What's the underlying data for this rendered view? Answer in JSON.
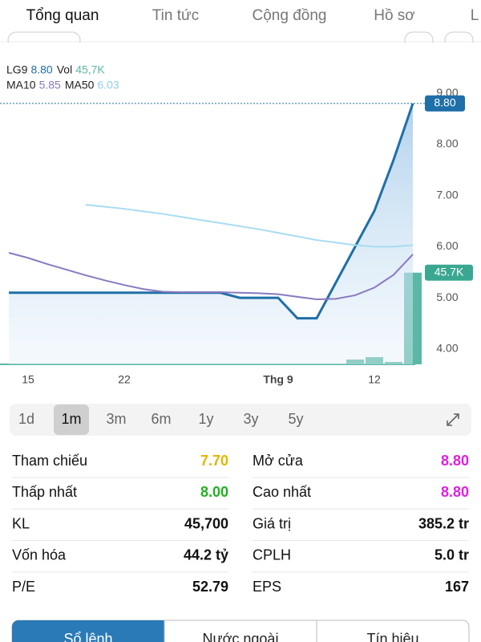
{
  "tabs": [
    "Tổng quan",
    "Tin tức",
    "Cộng đồng",
    "Hồ sơ",
    "L"
  ],
  "active_tab": 0,
  "chart": {
    "type": "line",
    "x": [
      -1,
      0,
      1,
      2,
      3,
      4,
      5,
      6,
      7,
      8,
      9,
      10,
      11,
      12,
      13,
      14,
      15,
      16,
      17,
      18,
      19,
      20
    ],
    "series": [
      {
        "name": "LG9",
        "legend_value": "8.80",
        "color": "#1f6fa8",
        "values": [
          5.1,
          5.1,
          5.1,
          5.1,
          5.1,
          5.1,
          5.1,
          5.1,
          5.1,
          5.1,
          5.1,
          5.1,
          5.0,
          5.0,
          5.0,
          4.6,
          4.6,
          5.3,
          6.0,
          6.7,
          7.7,
          8.8
        ]
      },
      {
        "name": "MA10",
        "legend_value": "5.85",
        "color": "#8a79c0",
        "values": [
          5.88,
          5.78,
          5.66,
          5.55,
          5.44,
          5.34,
          5.25,
          5.17,
          5.12,
          5.11,
          5.11,
          5.11,
          5.1,
          5.09,
          5.07,
          5.02,
          4.97,
          4.98,
          5.05,
          5.2,
          5.45,
          5.85
        ]
      },
      {
        "name": "MA50",
        "legend_value": "6.03",
        "color": "#a8dcf2",
        "values": [
          null,
          null,
          null,
          null,
          6.82,
          6.78,
          6.74,
          6.69,
          6.64,
          6.58,
          6.52,
          6.46,
          6.4,
          6.34,
          6.27,
          6.2,
          6.13,
          6.08,
          6.03,
          6.0,
          6.0,
          6.03
        ]
      }
    ],
    "volume": {
      "name": "Vol",
      "legend_value": "45,7K",
      "color": "#5bb8a6",
      "x": [
        17,
        18,
        19,
        20
      ],
      "values": [
        2400,
        3600,
        1200,
        45700
      ],
      "vlim": [
        0,
        60000
      ]
    },
    "xlim": [
      -1.46,
      20.125
    ],
    "ylim": [
      3.7,
      9.88
    ],
    "yticks": [
      {
        "value": 4,
        "label": "4.00"
      },
      {
        "value": 5,
        "label": "5.00"
      },
      {
        "value": 6,
        "label": "6.00"
      },
      {
        "value": 7,
        "label": "7.00"
      },
      {
        "value": 8,
        "label": "8.00"
      },
      {
        "value": 9,
        "label": "9.00"
      }
    ],
    "xticks": [
      {
        "value": 0,
        "label": "15"
      },
      {
        "value": 5,
        "label": "22"
      },
      {
        "value": 13,
        "label": "Thg 9"
      },
      {
        "value": 18,
        "label": "12"
      }
    ],
    "price_tag": {
      "value": 8.8,
      "label": "8.80"
    },
    "volume_tag": {
      "value": 45700,
      "label": "45.7K"
    }
  },
  "ranges": [
    "1d",
    "1m",
    "3m",
    "6m",
    "1y",
    "3y",
    "5y"
  ],
  "active_range": 1,
  "stats": [
    [
      {
        "label": "Tham chiếu",
        "value": "7.70",
        "color": "#e3b600"
      },
      {
        "label": "Mở cửa",
        "value": "8.80",
        "color": "#e01ee0"
      }
    ],
    [
      {
        "label": "Thấp nhất",
        "value": "8.00",
        "color": "#1fb31f"
      },
      {
        "label": "Cao nhất",
        "value": "8.80",
        "color": "#e01ee0"
      }
    ],
    [
      {
        "label": "KL",
        "value": "45,700",
        "color": "#111111"
      },
      {
        "label": "Giá trị",
        "value": "385.2 tr",
        "color": "#111111"
      }
    ],
    [
      {
        "label": "Vốn hóa",
        "value": "44.2 tỷ",
        "color": "#111111"
      },
      {
        "label": "CPLH",
        "value": "5.0 tr",
        "color": "#111111"
      }
    ],
    [
      {
        "label": "P/E",
        "value": "52.79",
        "color": "#111111"
      },
      {
        "label": "EPS",
        "value": "167",
        "color": "#111111"
      }
    ]
  ],
  "bottom_tabs": [
    "Sổ lệnh",
    "Nước ngoài",
    "Tín hiệu"
  ],
  "active_bottom_tab": 0
}
